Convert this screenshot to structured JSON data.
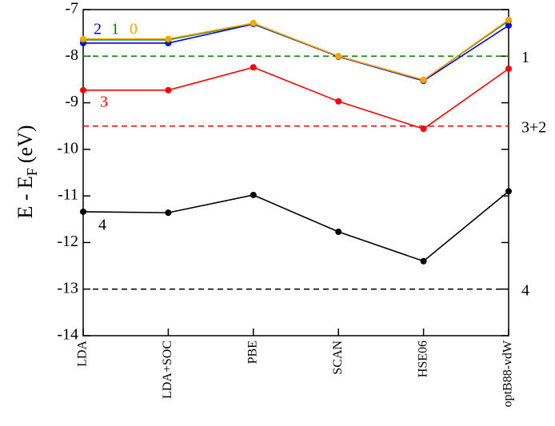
{
  "chart_data": {
    "type": "line",
    "ylabel": [
      "E - E",
      "F",
      "(eV)"
    ],
    "categories": [
      "LDA",
      "LDA+SOC",
      "PBE",
      "SCAN",
      "HSE06",
      "optB88-vdW"
    ],
    "ylim": [
      -14,
      -7
    ],
    "yticks": [
      -14,
      -13,
      -12,
      -11,
      -10,
      -9,
      -8,
      -7
    ],
    "series": [
      {
        "name": "4",
        "color": "#000000",
        "values": [
          -11.34,
          -11.36,
          -10.98,
          -11.77,
          -12.4,
          -10.9
        ]
      },
      {
        "name": "3",
        "color": "#ff0000",
        "values": [
          -8.73,
          -8.73,
          -8.24,
          -8.97,
          -9.56,
          -8.27
        ]
      },
      {
        "name": "2",
        "color": "#0000ff",
        "values": [
          -7.72,
          -7.72,
          -7.31,
          -8.01,
          -8.53,
          -7.34
        ]
      },
      {
        "name": "1",
        "color": "#008000",
        "values": [
          -7.65,
          -7.65,
          -7.3,
          -8.0,
          -8.51,
          -7.24
        ]
      },
      {
        "name": "0",
        "color": "#ffa500",
        "values": [
          -7.63,
          -7.63,
          -7.29,
          -8.0,
          -8.51,
          -7.22
        ]
      }
    ],
    "reference_lines": [
      {
        "label": "1",
        "value": -8,
        "color": "#008000"
      },
      {
        "label": "3+2",
        "value": -9.5,
        "color": "#ff0000"
      },
      {
        "label": "4",
        "value": -13,
        "color": "#000000"
      }
    ]
  }
}
